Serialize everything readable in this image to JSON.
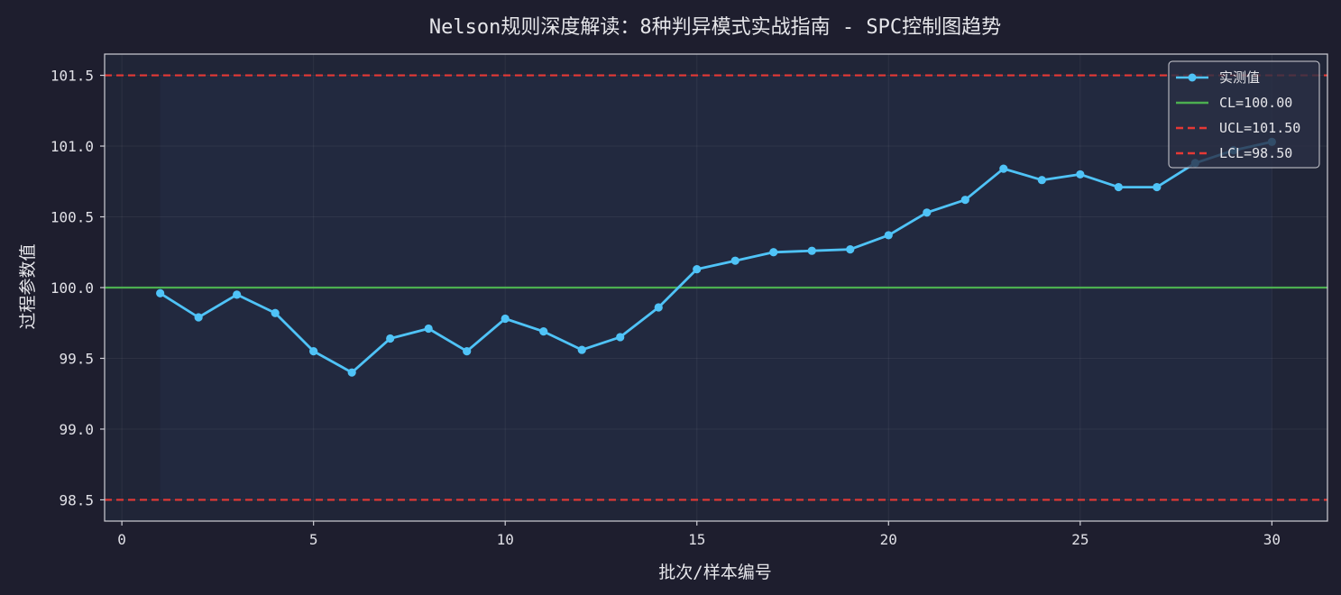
{
  "chart_data": {
    "type": "line",
    "title": "Nelson规则深度解读：8种判异模式实战指南 - SPC控制图趋势",
    "xlabel": "批次/样本编号",
    "ylabel": "过程参数值",
    "xlim": [
      -0.45,
      31.45
    ],
    "ylim": [
      98.35,
      101.65
    ],
    "xticks": [
      0,
      5,
      10,
      15,
      20,
      25,
      30
    ],
    "xtick_labels": [
      "0",
      "5",
      "10",
      "15",
      "20",
      "25",
      "30"
    ],
    "yticks": [
      98.5,
      99.0,
      99.5,
      100.0,
      100.5,
      101.0,
      101.5
    ],
    "ytick_labels": [
      "98.5",
      "99.0",
      "99.5",
      "100.0",
      "100.5",
      "101.0",
      "101.5"
    ],
    "grid": true,
    "legend_position": "top-right",
    "colors": {
      "background": "#1e1e2e",
      "plot_background": "#202537",
      "shaded_zone": "#22293f",
      "series": "#4fc3f7",
      "cl": "#4caf50",
      "limits": "#e53935",
      "text": "#e6e6ea",
      "axis": "#cfcfd6"
    },
    "series": [
      {
        "name": "实测值",
        "x": [
          1,
          2,
          3,
          4,
          5,
          6,
          7,
          8,
          9,
          10,
          11,
          12,
          13,
          14,
          15,
          16,
          17,
          18,
          19,
          20,
          21,
          22,
          23,
          24,
          25,
          26,
          27,
          28,
          29,
          30
        ],
        "values": [
          99.96,
          99.79,
          99.95,
          99.82,
          99.55,
          99.4,
          99.64,
          99.71,
          99.55,
          99.78,
          99.69,
          99.56,
          99.65,
          99.86,
          100.13,
          100.19,
          100.25,
          100.26,
          100.27,
          100.37,
          100.53,
          100.62,
          100.84,
          100.76,
          100.8,
          100.71,
          100.71,
          100.88,
          100.97,
          101.03
        ]
      }
    ],
    "reference_lines": [
      {
        "name": "CL=100.00",
        "value": 100.0,
        "style": "solid",
        "color": "#4caf50"
      },
      {
        "name": "UCL=101.50",
        "value": 101.5,
        "style": "dashed",
        "color": "#e53935"
      },
      {
        "name": "LCL=98.50",
        "value": 98.5,
        "style": "dashed",
        "color": "#e53935"
      }
    ],
    "shaded_range": [
      1,
      30
    ]
  }
}
